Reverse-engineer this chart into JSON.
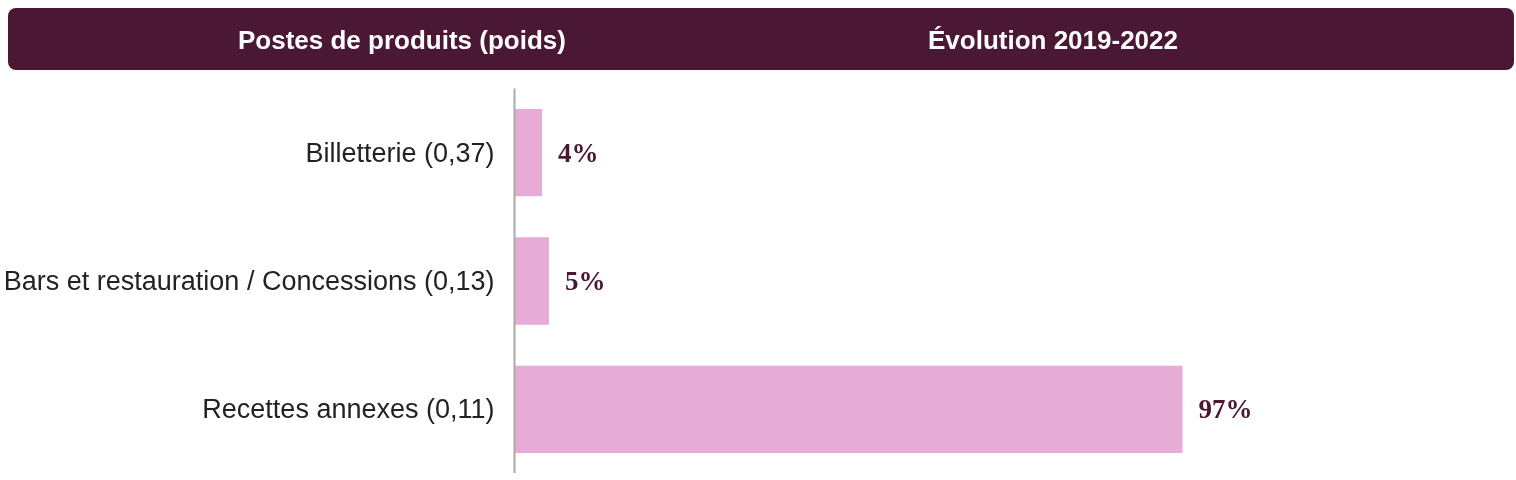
{
  "chart_data": {
    "type": "bar",
    "orientation": "horizontal",
    "annotations": [
      "Postes de produits (poids)",
      "Évolution 2019-2022"
    ],
    "categories": [
      "Billetterie (0,37)",
      "Bars et restauration / Concessions (0,13)",
      "Recettes annexes (0,11)"
    ],
    "values": [
      4,
      5,
      97
    ],
    "value_labels": [
      "4%",
      "5%",
      "97%"
    ],
    "color": "#e6acd5",
    "grid": false
  }
}
